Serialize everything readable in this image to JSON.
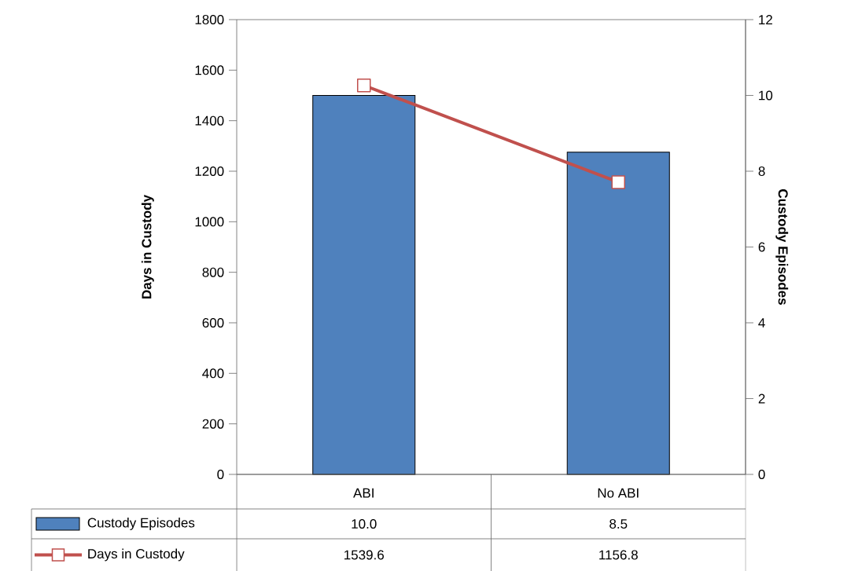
{
  "chart_data": {
    "type": "bar",
    "categories": [
      "ABI",
      "No ABI"
    ],
    "ylabel": "Days in Custody",
    "y2label": "Custody Episodes",
    "ylim": [
      0,
      1800
    ],
    "yticks": [
      0,
      200,
      400,
      600,
      800,
      1000,
      1200,
      1400,
      1600,
      1800
    ],
    "y2lim": [
      0,
      12
    ],
    "y2ticks": [
      0,
      2,
      4,
      6,
      8,
      10,
      12
    ],
    "legend": "bottom",
    "marker": "square",
    "series": [
      {
        "name": "Custody Episodes",
        "axis": "y2",
        "color": "#4f81bd",
        "values": [
          10.0,
          8.5
        ],
        "value_labels": [
          "10.0",
          "8.5"
        ]
      },
      {
        "name": "Days in Custody",
        "type": "line",
        "axis": "y",
        "color": "#c0504d",
        "values": [
          1539.6,
          1156.8
        ],
        "value_labels": [
          "1539.6",
          "1156.8"
        ]
      }
    ]
  }
}
